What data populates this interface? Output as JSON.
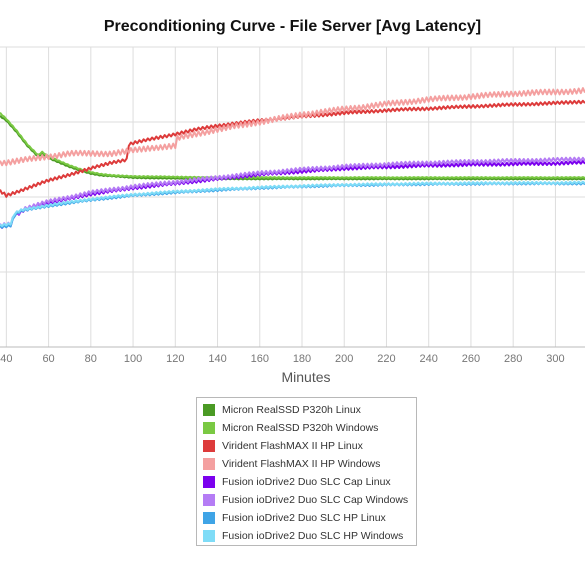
{
  "title": "Preconditioning Curve - File Server [Avg Latency]",
  "chart_data": {
    "type": "line",
    "title": "Preconditioning Curve - File Server [Avg Latency]",
    "xlabel": "Minutes",
    "ylabel": "",
    "x_ticks": [
      40,
      60,
      80,
      100,
      120,
      140,
      160,
      180,
      200,
      220,
      240,
      260,
      280,
      300
    ],
    "xlim": [
      37,
      314
    ],
    "ylim": [
      0,
      100
    ],
    "grid": true,
    "legend_position": "bottom-center",
    "series": [
      {
        "name": "Micron RealSSD P320h Linux",
        "color": "#4a9a24",
        "points": [
          [
            37,
            77
          ],
          [
            40,
            75.5
          ],
          [
            45,
            71.5
          ],
          [
            50,
            67
          ],
          [
            55,
            63.5
          ],
          [
            57,
            64.5
          ],
          [
            60,
            63
          ],
          [
            65,
            61.5
          ],
          [
            70,
            60
          ],
          [
            75,
            58.8
          ],
          [
            80,
            57.8
          ],
          [
            85,
            57.2
          ],
          [
            90,
            57
          ],
          [
            100,
            56.4
          ],
          [
            120,
            56.2
          ],
          [
            140,
            56
          ],
          [
            160,
            56
          ],
          [
            200,
            56
          ],
          [
            240,
            56
          ],
          [
            280,
            56
          ],
          [
            314,
            56
          ]
        ]
      },
      {
        "name": "Micron RealSSD P320h Windows",
        "color": "#7ac943",
        "points": [
          [
            37,
            78
          ],
          [
            40,
            76
          ],
          [
            45,
            72
          ],
          [
            50,
            67.5
          ],
          [
            55,
            64
          ],
          [
            57,
            65
          ],
          [
            60,
            63.5
          ],
          [
            65,
            62
          ],
          [
            70,
            60.5
          ],
          [
            75,
            59.3
          ],
          [
            80,
            58.3
          ],
          [
            85,
            57.6
          ],
          [
            90,
            57.2
          ],
          [
            100,
            56.9
          ],
          [
            120,
            56.7
          ],
          [
            140,
            56.5
          ],
          [
            160,
            56.5
          ],
          [
            200,
            56.5
          ],
          [
            240,
            56.5
          ],
          [
            280,
            56.5
          ],
          [
            314,
            56.5
          ]
        ]
      },
      {
        "name": "Virident FlashMAX II HP Linux",
        "color": "#dd3b3b",
        "points": [
          [
            37,
            52
          ],
          [
            40,
            50.5
          ],
          [
            50,
            53
          ],
          [
            60,
            55.5
          ],
          [
            70,
            57.5
          ],
          [
            80,
            59.5
          ],
          [
            90,
            61.5
          ],
          [
            97,
            62.5
          ],
          [
            98,
            67.5
          ],
          [
            100,
            68
          ],
          [
            110,
            69.5
          ],
          [
            120,
            71
          ],
          [
            130,
            72.5
          ],
          [
            140,
            73.8
          ],
          [
            160,
            75.5
          ],
          [
            180,
            76.8
          ],
          [
            200,
            78
          ],
          [
            220,
            78.9
          ],
          [
            240,
            79.5
          ],
          [
            260,
            80.2
          ],
          [
            280,
            80.8
          ],
          [
            300,
            81.3
          ],
          [
            314,
            81.8
          ]
        ]
      },
      {
        "name": "Virident FlashMAX II HP Windows",
        "color": "#f4a0a0",
        "points": [
          [
            37,
            61.5
          ],
          [
            40,
            61.5
          ],
          [
            50,
            62.5
          ],
          [
            60,
            63.5
          ],
          [
            70,
            64.5
          ],
          [
            80,
            64.5
          ],
          [
            90,
            64.5
          ],
          [
            100,
            65.5
          ],
          [
            110,
            66.5
          ],
          [
            120,
            67
          ],
          [
            121,
            69.5
          ],
          [
            130,
            71
          ],
          [
            140,
            72.5
          ],
          [
            160,
            75
          ],
          [
            180,
            77.5
          ],
          [
            200,
            79.3
          ],
          [
            220,
            81
          ],
          [
            240,
            82.5
          ],
          [
            260,
            83.5
          ],
          [
            280,
            84.5
          ],
          [
            300,
            85
          ],
          [
            314,
            85.5
          ]
        ]
      },
      {
        "name": "Fusion ioDrive2 Duo SLC Cap Linux",
        "color": "#7b00ee",
        "points": [
          [
            37,
            40
          ],
          [
            42,
            40.5
          ],
          [
            44,
            44
          ],
          [
            46,
            44.5
          ],
          [
            48,
            45.5
          ],
          [
            60,
            48
          ],
          [
            80,
            51
          ],
          [
            100,
            53
          ],
          [
            120,
            54.5
          ],
          [
            140,
            56
          ],
          [
            160,
            57.5
          ],
          [
            180,
            58.5
          ],
          [
            200,
            59.5
          ],
          [
            220,
            60
          ],
          [
            240,
            60.5
          ],
          [
            260,
            60.8
          ],
          [
            280,
            61
          ],
          [
            300,
            61.2
          ],
          [
            314,
            61.5
          ]
        ]
      },
      {
        "name": "Fusion ioDrive2 Duo SLC Cap Windows",
        "color": "#b57cf5",
        "points": [
          [
            37,
            40.5
          ],
          [
            42,
            41
          ],
          [
            44,
            44.5
          ],
          [
            46,
            45
          ],
          [
            48,
            46
          ],
          [
            60,
            48.5
          ],
          [
            80,
            51.5
          ],
          [
            100,
            53.5
          ],
          [
            120,
            55
          ],
          [
            140,
            56.5
          ],
          [
            160,
            58
          ],
          [
            180,
            59.2
          ],
          [
            200,
            60.2
          ],
          [
            220,
            60.9
          ],
          [
            240,
            61.4
          ],
          [
            260,
            61.8
          ],
          [
            280,
            62.1
          ],
          [
            300,
            62.4
          ],
          [
            314,
            62.7
          ]
        ]
      },
      {
        "name": "Fusion ioDrive2 Duo SLC HP Linux",
        "color": "#3fa4e6",
        "points": [
          [
            37,
            40
          ],
          [
            42,
            40.5
          ],
          [
            44,
            44
          ],
          [
            46,
            45
          ],
          [
            48,
            45.5
          ],
          [
            60,
            47
          ],
          [
            80,
            49
          ],
          [
            100,
            50.5
          ],
          [
            120,
            51.5
          ],
          [
            140,
            52.3
          ],
          [
            160,
            53
          ],
          [
            180,
            53.5
          ],
          [
            200,
            53.9
          ],
          [
            220,
            54.1
          ],
          [
            240,
            54.3
          ],
          [
            260,
            54.4
          ],
          [
            280,
            54.5
          ],
          [
            300,
            54.5
          ],
          [
            314,
            54.5
          ]
        ]
      },
      {
        "name": "Fusion ioDrive2 Duo SLC HP Windows",
        "color": "#7fdcf7",
        "points": [
          [
            37,
            40.5
          ],
          [
            42,
            41
          ],
          [
            44,
            44.5
          ],
          [
            46,
            45.3
          ],
          [
            48,
            45.8
          ],
          [
            60,
            47.3
          ],
          [
            80,
            49.3
          ],
          [
            100,
            50.8
          ],
          [
            120,
            51.8
          ],
          [
            140,
            52.6
          ],
          [
            160,
            53.2
          ],
          [
            180,
            53.7
          ],
          [
            200,
            54.1
          ],
          [
            220,
            54.3
          ],
          [
            240,
            54.5
          ],
          [
            260,
            54.6
          ],
          [
            280,
            54.7
          ],
          [
            300,
            54.7
          ],
          [
            314,
            54.8
          ]
        ]
      }
    ]
  }
}
